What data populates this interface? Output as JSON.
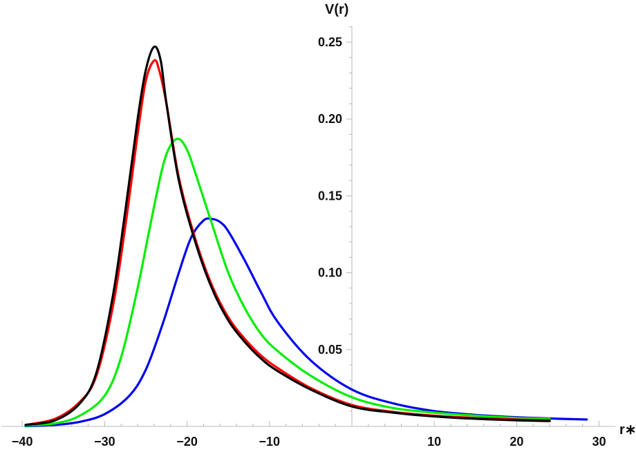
{
  "chart_data": {
    "type": "line",
    "title": "",
    "xlabel": "r∗",
    "ylabel": "V(r)",
    "xlim": [
      -42.5,
      32
    ],
    "ylim": [
      -0.001,
      0.26
    ],
    "x_ticks": [
      -40,
      -30,
      -20,
      -10,
      10,
      20,
      30
    ],
    "x_tick_labels": [
      "−40",
      "−30",
      "−20",
      "−10",
      "10",
      "20",
      "30"
    ],
    "y_ticks": [
      0.05,
      0.1,
      0.15,
      0.2,
      0.25
    ],
    "y_tick_labels": [
      "0.05",
      "0.10",
      "0.15",
      "0.20",
      "0.25"
    ],
    "grid": false,
    "legend": "none",
    "series": [
      {
        "color": "#000000",
        "x": [
          -39.6,
          -36,
          -33,
          -31,
          -29,
          -27.5,
          -26,
          -25,
          -24,
          -23.2,
          -22.5,
          -21,
          -19,
          -17,
          -15,
          -13,
          -11,
          -9,
          -5,
          0,
          5,
          10,
          15,
          20,
          24
        ],
        "values": [
          0.001,
          0.004,
          0.015,
          0.035,
          0.085,
          0.14,
          0.2,
          0.232,
          0.247,
          0.238,
          0.21,
          0.16,
          0.12,
          0.09,
          0.069,
          0.055,
          0.044,
          0.036,
          0.024,
          0.013,
          0.009,
          0.0065,
          0.005,
          0.004,
          0.0035
        ]
      },
      {
        "color": "#ff0000",
        "x": [
          -39.6,
          -36,
          -33,
          -31,
          -29,
          -27.5,
          -26,
          -25,
          -24,
          -23.4,
          -22.5,
          -21,
          -19,
          -17,
          -15,
          -13,
          -11,
          -9,
          -5,
          0,
          5,
          10,
          15,
          20,
          24
        ],
        "values": [
          0.001,
          0.005,
          0.016,
          0.033,
          0.078,
          0.13,
          0.19,
          0.225,
          0.238,
          0.232,
          0.21,
          0.162,
          0.122,
          0.092,
          0.071,
          0.057,
          0.046,
          0.038,
          0.025,
          0.014,
          0.0095,
          0.007,
          0.0055,
          0.0045,
          0.004
        ]
      },
      {
        "color": "#00ee00",
        "x": [
          -39.6,
          -36,
          -33,
          -30,
          -28,
          -26,
          -24.5,
          -23,
          -22,
          -21,
          -20,
          -19,
          -17,
          -15,
          -13,
          -11,
          -9,
          -5,
          0,
          5,
          10,
          15,
          20,
          24
        ],
        "values": [
          0.0005,
          0.002,
          0.007,
          0.02,
          0.045,
          0.09,
          0.13,
          0.168,
          0.183,
          0.187,
          0.18,
          0.165,
          0.132,
          0.1,
          0.077,
          0.06,
          0.049,
          0.033,
          0.019,
          0.012,
          0.009,
          0.007,
          0.0055,
          0.005
        ]
      },
      {
        "color": "#0000ee",
        "x": [
          -39.6,
          -36,
          -33,
          -30,
          -27,
          -25,
          -23,
          -21,
          -19.5,
          -18,
          -17,
          -16,
          -15,
          -13,
          -11,
          -9,
          -5,
          0,
          5,
          10,
          15,
          20,
          25,
          28.5
        ],
        "values": [
          0.0002,
          0.001,
          0.003,
          0.008,
          0.02,
          0.037,
          0.066,
          0.1,
          0.123,
          0.134,
          0.135,
          0.133,
          0.127,
          0.108,
          0.087,
          0.068,
          0.043,
          0.024,
          0.015,
          0.01,
          0.0075,
          0.006,
          0.005,
          0.0045
        ]
      }
    ]
  }
}
